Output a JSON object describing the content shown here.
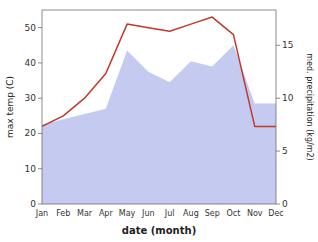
{
  "chart_data": {
    "type": "line",
    "xlabel": "date (month)",
    "ylabel": "max temp (C)",
    "y2label": "med. precipitation (kg/m2)",
    "categories": [
      "Jan",
      "Feb",
      "Mar",
      "Apr",
      "May",
      "Jun",
      "Jul",
      "Aug",
      "Sep",
      "Oct",
      "Nov",
      "Dec"
    ],
    "series": [
      {
        "type": "area",
        "axis": "y2",
        "color": "#c5caf0",
        "values": [
          7.5,
          8.0,
          8.5,
          9.0,
          14.5,
          12.5,
          11.5,
          13.5,
          13.0,
          15.0,
          9.5,
          9.5
        ]
      },
      {
        "type": "line",
        "color": "#c0392b",
        "values": [
          22,
          25,
          30,
          37,
          51,
          50,
          49,
          51,
          53,
          48,
          22,
          22
        ]
      }
    ],
    "ylim": [
      0,
      55
    ],
    "yticks": [
      0,
      10,
      20,
      30,
      40,
      50
    ],
    "y2lim": [
      0,
      18.333
    ],
    "y2ticks": [
      0,
      5,
      10,
      15
    ]
  }
}
